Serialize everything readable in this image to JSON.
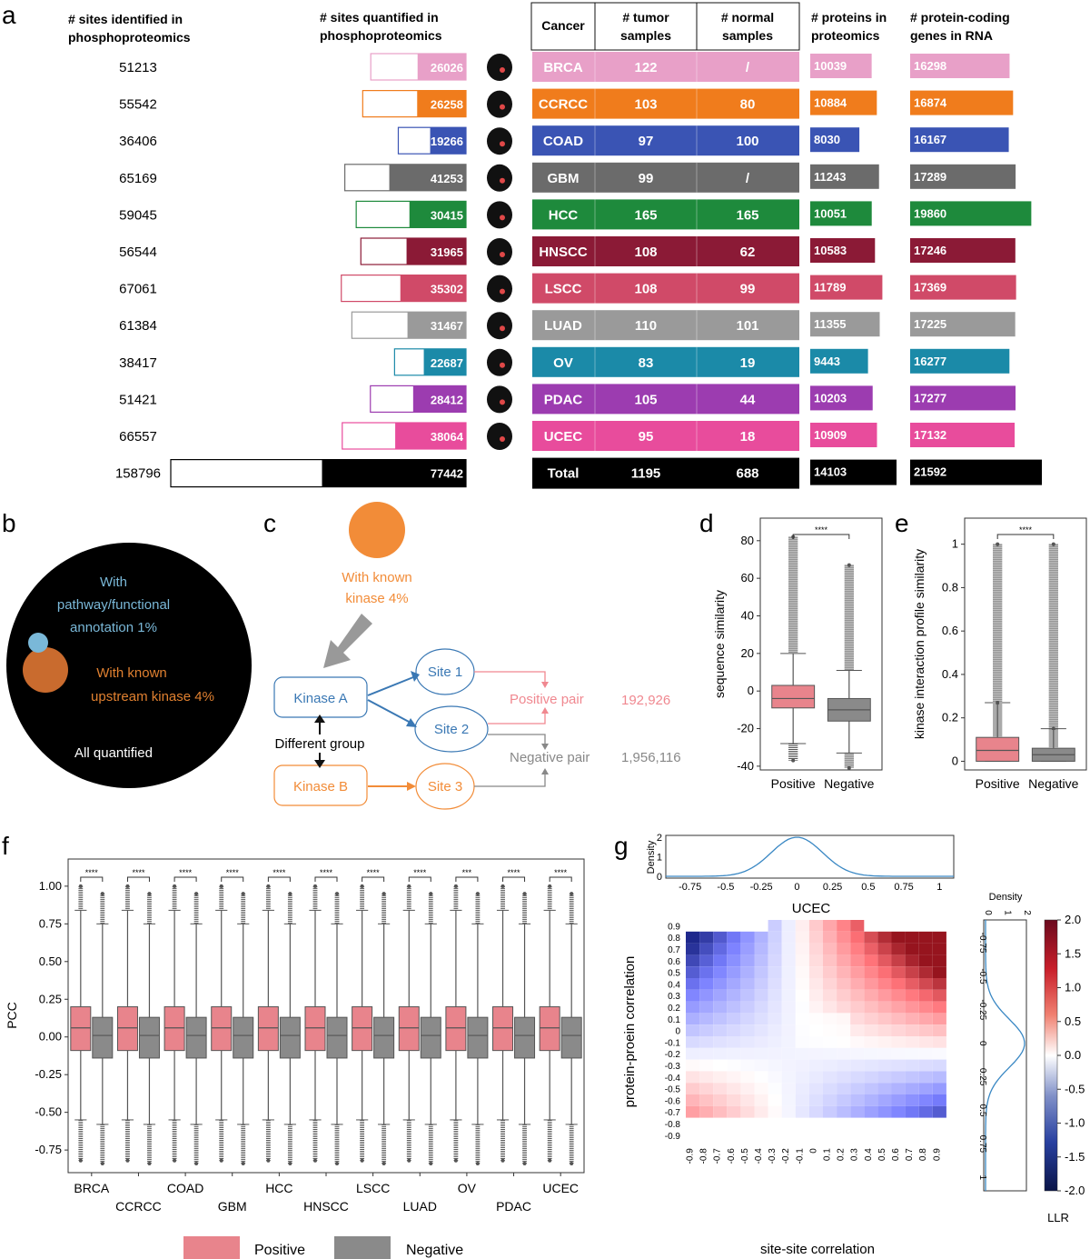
{
  "panel_labels": {
    "a": "a",
    "b": "b",
    "c": "c",
    "d": "d",
    "e": "e",
    "f": "f",
    "g": "g"
  },
  "chart_data": [
    {
      "panel": "a",
      "type": "table",
      "headers": {
        "identified": [
          "# sites identified in",
          "phosphoproteomics"
        ],
        "quantified": [
          "# sites quantified in",
          "phosphoproteomics"
        ],
        "cancer": "Cancer",
        "tumor": [
          "# tumor",
          "samples"
        ],
        "normal": [
          "# normal",
          "samples"
        ],
        "proteins": [
          "# proteins in",
          "proteomics"
        ],
        "rna": [
          "# protein-coding",
          "genes in RNA"
        ]
      },
      "rows": [
        {
          "cancer": "BRCA",
          "identified": "51213",
          "quantified": "26026",
          "tumor": "122",
          "normal": "/",
          "proteins": "10039",
          "rna": "16298",
          "color": "#e8a0c8"
        },
        {
          "cancer": "CCRCC",
          "identified": "55542",
          "quantified": "26258",
          "tumor": "103",
          "normal": "80",
          "proteins": "10884",
          "rna": "16874",
          "color": "#f07c1c"
        },
        {
          "cancer": "COAD",
          "identified": "36406",
          "quantified": "19266",
          "tumor": "97",
          "normal": "100",
          "proteins": "8030",
          "rna": "16167",
          "color": "#3a54b4"
        },
        {
          "cancer": "GBM",
          "identified": "65169",
          "quantified": "41253",
          "tumor": "99",
          "normal": "/",
          "proteins": "11243",
          "rna": "17289",
          "color": "#6b6b6b"
        },
        {
          "cancer": "HCC",
          "identified": "59045",
          "quantified": "30415",
          "tumor": "165",
          "normal": "165",
          "proteins": "10051",
          "rna": "19860",
          "color": "#1e8a3c"
        },
        {
          "cancer": "HNSCC",
          "identified": "56544",
          "quantified": "31965",
          "tumor": "108",
          "normal": "62",
          "proteins": "10583",
          "rna": "17246",
          "color": "#8b1a36"
        },
        {
          "cancer": "LSCC",
          "identified": "67061",
          "quantified": "35302",
          "tumor": "108",
          "normal": "99",
          "proteins": "11789",
          "rna": "17369",
          "color": "#d04a68"
        },
        {
          "cancer": "LUAD",
          "identified": "61384",
          "quantified": "31467",
          "tumor": "110",
          "normal": "101",
          "proteins": "11355",
          "rna": "17225",
          "color": "#9a9a9a"
        },
        {
          "cancer": "OV",
          "identified": "38417",
          "quantified": "22687",
          "tumor": "83",
          "normal": "19",
          "proteins": "9443",
          "rna": "16277",
          "color": "#1b8aa8"
        },
        {
          "cancer": "PDAC",
          "identified": "51421",
          "quantified": "28412",
          "tumor": "105",
          "normal": "44",
          "proteins": "10203",
          "rna": "17277",
          "color": "#9c3cb0"
        },
        {
          "cancer": "UCEC",
          "identified": "66557",
          "quantified": "38064",
          "tumor": "95",
          "normal": "18",
          "proteins": "10909",
          "rna": "17132",
          "color": "#e84c9c"
        }
      ],
      "total": {
        "cancer": "Total",
        "identified": "158796",
        "quantified": "77442",
        "tumor": "1195",
        "normal": "688",
        "proteins": "14103",
        "rna": "21592",
        "color": "#000000"
      }
    },
    {
      "panel": "b",
      "type": "diagram",
      "labels": {
        "pathway": [
          "With",
          "pathway/functional",
          "annotation 1%"
        ],
        "kinase": [
          "With known",
          "upstream kinase 4%"
        ],
        "all": "All quantified"
      },
      "colors": {
        "all": "#000000",
        "kinase": "#c96b2e",
        "pathway": "#7ab8d8"
      }
    },
    {
      "panel": "c",
      "type": "diagram",
      "labels": {
        "known": [
          "With known",
          "kinase 4%"
        ],
        "kinase_a": "Kinase A",
        "kinase_b": "Kinase B",
        "site1": "Site 1",
        "site2": "Site 2",
        "site3": "Site 3",
        "different_group": "Different group",
        "positive": "Positive pair",
        "positive_count": "192,926",
        "negative": "Negative pair",
        "negative_count": "1,956,116"
      },
      "colors": {
        "orange": "#f28c38",
        "blue": "#3a78b4",
        "positive": "#f08890",
        "negative": "#888888"
      }
    },
    {
      "panel": "d",
      "type": "box",
      "ylabel": "sequence similarity",
      "ylim": [
        -42,
        92
      ],
      "yticks": [
        80,
        60,
        40,
        20,
        0,
        -20,
        -40
      ],
      "categories": [
        "Positive",
        "Negative"
      ],
      "significance": "****",
      "boxes": [
        {
          "name": "Positive",
          "q1": -9,
          "median": -4,
          "q3": 3,
          "whisker_low": -28,
          "whisker_high": 20,
          "outlier_min": -37,
          "outlier_max": 82,
          "color": "#e8848c"
        },
        {
          "name": "Negative",
          "q1": -16,
          "median": -10,
          "q3": -4,
          "whisker_low": -33,
          "whisker_high": 11,
          "outlier_min": -41,
          "outlier_max": 67,
          "color": "#8a8a8a"
        }
      ]
    },
    {
      "panel": "e",
      "type": "box",
      "ylabel": "kinase interaction profile similarity",
      "ylim": [
        -0.04,
        1.12
      ],
      "yticks": [
        1.0,
        0.8,
        0.6,
        0.4,
        0.2,
        0.0
      ],
      "categories": [
        "Positive",
        "Negative"
      ],
      "significance": "****",
      "boxes": [
        {
          "name": "Positive",
          "q1": 0.0,
          "median": 0.05,
          "q3": 0.11,
          "whisker_low": 0.0,
          "whisker_high": 0.27,
          "outlier_min": 0.27,
          "outlier_max": 1.0,
          "color": "#e8848c"
        },
        {
          "name": "Negative",
          "q1": 0.0,
          "median": 0.03,
          "q3": 0.06,
          "whisker_low": 0.0,
          "whisker_high": 0.15,
          "outlier_min": 0.15,
          "outlier_max": 1.0,
          "color": "#8a8a8a"
        }
      ]
    },
    {
      "panel": "f",
      "type": "box",
      "ylabel": "PCC",
      "ylim": [
        -0.9,
        1.18
      ],
      "yticks": [
        1.0,
        0.75,
        0.5,
        0.25,
        0.0,
        -0.25,
        -0.5,
        -0.75
      ],
      "categories": [
        "BRCA",
        "CCRCC",
        "COAD",
        "GBM",
        "HCC",
        "HNSCC",
        "LSCC",
        "LUAD",
        "OV",
        "PDAC",
        "UCEC"
      ],
      "significance": [
        "****",
        "****",
        "****",
        "****",
        "****",
        "****",
        "****",
        "****",
        "***",
        "****",
        "****"
      ],
      "legend": {
        "positive": "Positive",
        "negative": "Negative"
      },
      "colors": {
        "positive": "#e8848c",
        "negative": "#8a8a8a"
      },
      "positive": {
        "q1": -0.09,
        "median": 0.06,
        "q3": 0.2,
        "whisker_low": -0.55,
        "whisker_high": 0.84,
        "outlier_min": -0.82,
        "outlier_max": 1.0
      },
      "negative": {
        "q1": -0.14,
        "median": 0.01,
        "q3": 0.13,
        "whisker_low": -0.58,
        "whisker_high": 0.75,
        "outlier_min": -0.84,
        "outlier_max": 0.95
      }
    },
    {
      "panel": "g",
      "type": "heatmap",
      "title": "UCEC",
      "xlabel": "site-site correlation",
      "ylabel": "protein-proein correlation",
      "xticks": [
        "-0.9",
        "-0.8",
        "-0.7",
        "-0.6",
        "-0.5",
        "-0.4",
        "-0.3",
        "-0.2",
        "-0.1",
        "0",
        "0.1",
        "0.2",
        "0.3",
        "0.4",
        "0.5",
        "0.6",
        "0.7",
        "0.8",
        "0.9"
      ],
      "yticks": [
        "0.9",
        "0.8",
        "0.7",
        "0.6",
        "0.5",
        "0.4",
        "0.3",
        "0.2",
        "0.1",
        "0",
        "-0.1",
        "-0.2",
        "-0.3",
        "-0.4",
        "-0.5",
        "-0.6",
        "-0.7",
        "-0.8",
        "-0.9"
      ],
      "colorbar": {
        "label": "LLR",
        "min": -2.0,
        "max": 2.0,
        "ticks": [
          "2.0",
          "1.5",
          "1.0",
          "0.5",
          "0.0",
          "-0.5",
          "-1.0",
          "-1.5",
          "-2.0"
        ]
      },
      "top_density": {
        "label": "Density",
        "ticks": [
          "-0.75",
          "-0.5",
          "-0.25",
          "0",
          "0.25",
          "0.5",
          "0.75",
          "1"
        ],
        "yticks": [
          "2",
          "1",
          "0"
        ]
      },
      "side_density": {
        "label": "Density",
        "ticks": [
          "-0.75",
          "-0.5",
          "-0.25",
          "0",
          "0.25",
          "0.5",
          "0.75",
          "1"
        ],
        "xticks": [
          "0",
          "1",
          "2"
        ]
      }
    }
  ]
}
